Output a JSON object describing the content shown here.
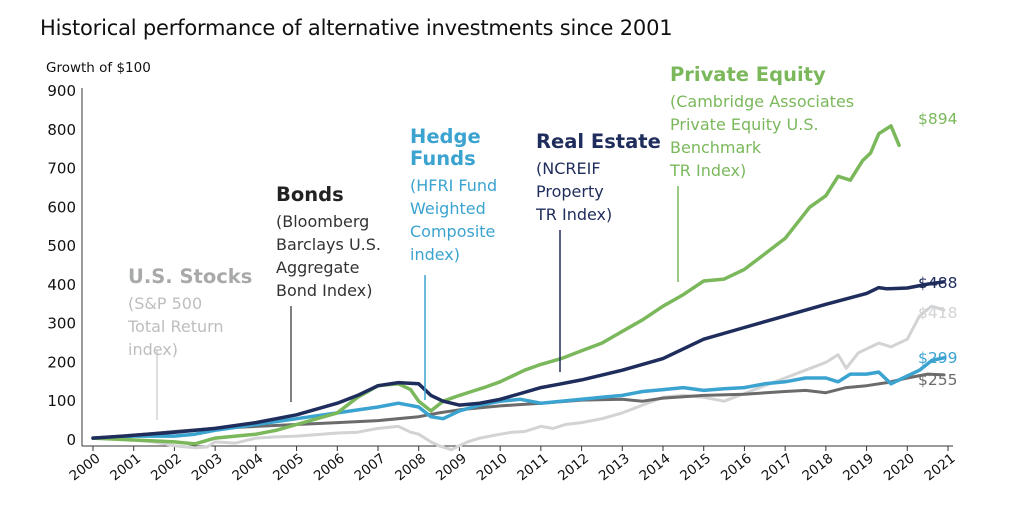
{
  "chart_data": {
    "type": "line",
    "title": "Historical performance of alternative investments since 2001",
    "ylabel": "Growth of $100",
    "xlabel": "",
    "ylim": [
      0,
      900
    ],
    "xlim": [
      2000,
      2021
    ],
    "yticks": [
      0,
      100,
      200,
      300,
      400,
      500,
      600,
      700,
      800,
      900
    ],
    "xticks": [
      "2000",
      "2001",
      "2002",
      "2003",
      "2004",
      "2005",
      "2006",
      "2007",
      "2008",
      "2009",
      "2010",
      "2011",
      "2012",
      "2013",
      "2014",
      "2015",
      "2016",
      "2017",
      "2018",
      "2019",
      "2020",
      "2021"
    ],
    "grid": false,
    "series": [
      {
        "name": "U.S. Stocks",
        "subtitle": [
          "(S&P 500",
          "Total Return",
          "index)"
        ],
        "color": "#d2d3d5",
        "end_label": "$418",
        "x": [
          2000.0,
          2000.5,
          2001.0,
          2001.5,
          2001.75,
          2002.0,
          2002.5,
          2002.8,
          2003.0,
          2003.5,
          2004.0,
          2004.5,
          2005.0,
          2005.5,
          2006.0,
          2006.5,
          2007.0,
          2007.5,
          2007.8,
          2008.0,
          2008.3,
          2008.5,
          2008.8,
          2009.0,
          2009.2,
          2009.5,
          2010.0,
          2010.3,
          2010.6,
          2011.0,
          2011.3,
          2011.6,
          2012.0,
          2012.5,
          2013.0,
          2013.5,
          2014.0,
          2014.5,
          2015.0,
          2015.5,
          2016.0,
          2016.5,
          2017.0,
          2017.5,
          2018.0,
          2018.3,
          2018.5,
          2018.8,
          2019.0,
          2019.3,
          2019.6,
          2020.0,
          2020.3,
          2020.6,
          2020.9
        ],
        "y": [
          5,
          5,
          0,
          -5,
          -10,
          -15,
          -20,
          -18,
          -5,
          -8,
          5,
          8,
          10,
          14,
          18,
          20,
          30,
          35,
          20,
          15,
          -5,
          -15,
          -25,
          -15,
          -5,
          5,
          15,
          20,
          22,
          35,
          30,
          40,
          45,
          55,
          70,
          90,
          110,
          115,
          110,
          100,
          120,
          140,
          160,
          180,
          200,
          220,
          185,
          225,
          235,
          250,
          240,
          260,
          320,
          345,
          335
        ]
      },
      {
        "name": "Bonds",
        "subtitle": [
          "(Bloomberg",
          "Barclays U.S.",
          "Aggregate",
          "Bond Index)"
        ],
        "color": "#6b6b6b",
        "end_label": "$255",
        "x": [
          2000.0,
          2001.0,
          2002.0,
          2003.0,
          2004.0,
          2005.0,
          2006.0,
          2007.0,
          2008.0,
          2008.5,
          2009.0,
          2010.0,
          2011.0,
          2012.0,
          2013.0,
          2013.5,
          2014.0,
          2015.0,
          2016.0,
          2017.0,
          2017.5,
          2018.0,
          2018.5,
          2019.0,
          2019.5,
          2020.0,
          2020.5,
          2020.9
        ],
        "y": [
          5,
          12,
          22,
          30,
          35,
          40,
          45,
          50,
          60,
          70,
          78,
          88,
          95,
          103,
          105,
          100,
          108,
          115,
          118,
          125,
          128,
          122,
          135,
          140,
          148,
          160,
          170,
          168
        ]
      },
      {
        "name": "Hedge Funds",
        "subtitle": [
          "(HFRI Fund",
          "Weighted",
          "Composite",
          "index)"
        ],
        "color": "#3ba3d0",
        "end_label": "$299",
        "x": [
          2000.0,
          2001.0,
          2002.0,
          2002.5,
          2003.0,
          2004.0,
          2005.0,
          2006.0,
          2007.0,
          2007.5,
          2008.0,
          2008.3,
          2008.6,
          2009.0,
          2009.5,
          2010.0,
          2010.5,
          2011.0,
          2011.5,
          2012.0,
          2012.5,
          2013.0,
          2013.5,
          2014.0,
          2014.5,
          2015.0,
          2015.5,
          2016.0,
          2016.5,
          2017.0,
          2017.5,
          2018.0,
          2018.3,
          2018.6,
          2019.0,
          2019.3,
          2019.6,
          2020.0,
          2020.3,
          2020.6,
          2020.9
        ],
        "y": [
          5,
          10,
          10,
          15,
          25,
          40,
          55,
          70,
          85,
          95,
          85,
          60,
          55,
          75,
          90,
          100,
          105,
          95,
          100,
          105,
          110,
          115,
          125,
          130,
          135,
          128,
          132,
          135,
          145,
          150,
          160,
          160,
          150,
          170,
          170,
          175,
          145,
          165,
          180,
          205,
          212
        ]
      },
      {
        "name": "Real Estate",
        "subtitle": [
          "(NCREIF",
          "Property",
          "TR Index)"
        ],
        "color": "#1f2d5c",
        "end_label": "$488",
        "x": [
          2000.0,
          2001.0,
          2002.0,
          2003.0,
          2004.0,
          2005.0,
          2006.0,
          2006.5,
          2007.0,
          2007.5,
          2008.0,
          2008.3,
          2008.6,
          2009.0,
          2009.5,
          2010.0,
          2010.5,
          2011.0,
          2011.5,
          2012.0,
          2013.0,
          2014.0,
          2015.0,
          2016.0,
          2017.0,
          2018.0,
          2019.0,
          2019.3,
          2019.5,
          2020.0,
          2020.5,
          2020.9
        ],
        "y": [
          5,
          12,
          20,
          30,
          45,
          65,
          95,
          115,
          140,
          148,
          145,
          115,
          100,
          90,
          95,
          105,
          120,
          135,
          145,
          155,
          180,
          210,
          260,
          290,
          320,
          350,
          378,
          393,
          390,
          392,
          402,
          408
        ]
      },
      {
        "name": "Private Equity",
        "subtitle": [
          "(Cambridge Associates",
          "Private Equity U.S.",
          "Benchmark",
          "TR Index)"
        ],
        "color": "#7ab85b",
        "end_label": "$894",
        "x": [
          2000.0,
          2001.0,
          2002.0,
          2002.5,
          2003.0,
          2004.0,
          2004.5,
          2005.0,
          2006.0,
          2006.5,
          2007.0,
          2007.5,
          2007.8,
          2008.0,
          2008.3,
          2008.6,
          2009.0,
          2009.3,
          2009.6,
          2010.0,
          2010.3,
          2010.6,
          2011.0,
          2011.5,
          2012.0,
          2012.5,
          2013.0,
          2013.5,
          2014.0,
          2014.5,
          2015.0,
          2015.5,
          2016.0,
          2016.5,
          2017.0,
          2017.3,
          2017.6,
          2018.0,
          2018.3,
          2018.6,
          2018.9,
          2019.1,
          2019.3,
          2019.6,
          2019.8
        ],
        "y": [
          5,
          0,
          -5,
          -10,
          5,
          15,
          25,
          40,
          70,
          110,
          140,
          145,
          130,
          100,
          75,
          100,
          115,
          125,
          135,
          150,
          165,
          180,
          195,
          210,
          230,
          250,
          280,
          310,
          345,
          375,
          410,
          415,
          440,
          480,
          520,
          560,
          600,
          630,
          680,
          670,
          720,
          740,
          790,
          810,
          760
        ]
      }
    ]
  }
}
